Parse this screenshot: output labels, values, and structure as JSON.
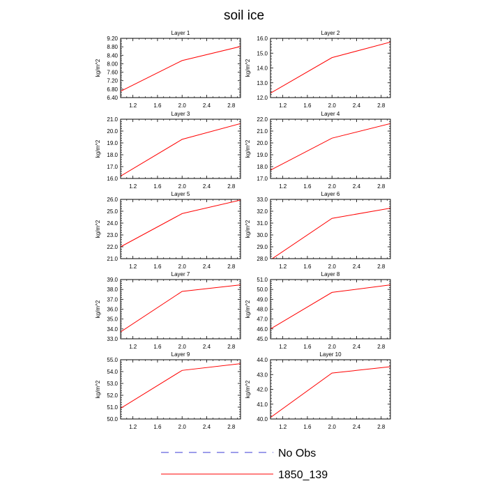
{
  "figure_title": "soil ice",
  "legend": [
    {
      "label": "No Obs",
      "color": "#3b3bd6",
      "style": "dashed"
    },
    {
      "label": "1850_139",
      "color": "#ff0000",
      "style": "solid"
    }
  ],
  "chart_data": [
    {
      "type": "line",
      "title": "Layer 1",
      "ylabel": "kg/m^2",
      "xlim": [
        1.0,
        2.95
      ],
      "ylim": [
        6.4,
        9.2
      ],
      "xticks": [
        "1.2",
        "1.6",
        "2.0",
        "2.4",
        "2.8"
      ],
      "yticks": [
        "6.40",
        "6.80",
        "7.20",
        "7.60",
        "8.00",
        "8.40",
        "8.80",
        "9.20"
      ],
      "series": [
        {
          "name": "1850_139",
          "x": [
            1,
            2,
            3
          ],
          "y": [
            6.7,
            8.15,
            8.85
          ]
        }
      ]
    },
    {
      "type": "line",
      "title": "Layer 2",
      "ylabel": "kg/m^2",
      "xlim": [
        1.0,
        2.95
      ],
      "ylim": [
        12.0,
        16.0
      ],
      "xticks": [
        "1.2",
        "1.6",
        "2.0",
        "2.4",
        "2.8"
      ],
      "yticks": [
        "12.0",
        "13.0",
        "14.0",
        "15.0",
        "16.0"
      ],
      "series": [
        {
          "name": "1850_139",
          "x": [
            1,
            2,
            3
          ],
          "y": [
            12.3,
            14.7,
            15.8
          ]
        }
      ]
    },
    {
      "type": "line",
      "title": "Layer 3",
      "ylabel": "kg/m^2",
      "xlim": [
        1.0,
        2.95
      ],
      "ylim": [
        16.0,
        21.0
      ],
      "xticks": [
        "1.2",
        "1.6",
        "2.0",
        "2.4",
        "2.8"
      ],
      "yticks": [
        "16.0",
        "17.0",
        "18.0",
        "19.0",
        "20.0",
        "21.0"
      ],
      "series": [
        {
          "name": "1850_139",
          "x": [
            1,
            2,
            3
          ],
          "y": [
            16.2,
            19.3,
            20.7
          ]
        }
      ]
    },
    {
      "type": "line",
      "title": "Layer 4",
      "ylabel": "kg/m^2",
      "xlim": [
        1.0,
        2.95
      ],
      "ylim": [
        17.0,
        22.0
      ],
      "xticks": [
        "1.2",
        "1.6",
        "2.0",
        "2.4",
        "2.8"
      ],
      "yticks": [
        "17.0",
        "18.0",
        "19.0",
        "20.0",
        "21.0",
        "22.0"
      ],
      "series": [
        {
          "name": "1850_139",
          "x": [
            1,
            2,
            3
          ],
          "y": [
            17.7,
            20.4,
            21.7
          ]
        }
      ]
    },
    {
      "type": "line",
      "title": "Layer 5",
      "ylabel": "kg/m^2",
      "xlim": [
        1.0,
        2.95
      ],
      "ylim": [
        21.0,
        26.0
      ],
      "xticks": [
        "1.2",
        "1.6",
        "2.0",
        "2.4",
        "2.8"
      ],
      "yticks": [
        "21.0",
        "22.0",
        "23.0",
        "24.0",
        "25.0",
        "26.0"
      ],
      "series": [
        {
          "name": "1850_139",
          "x": [
            1,
            2,
            3
          ],
          "y": [
            22.0,
            24.8,
            26.0
          ]
        }
      ]
    },
    {
      "type": "line",
      "title": "Layer 6",
      "ylabel": "kg/m^2",
      "xlim": [
        1.0,
        2.95
      ],
      "ylim": [
        28.0,
        33.0
      ],
      "xticks": [
        "1.2",
        "1.6",
        "2.0",
        "2.4",
        "2.8"
      ],
      "yticks": [
        "28.0",
        "29.0",
        "30.0",
        "31.0",
        "32.0",
        "33.0"
      ],
      "series": [
        {
          "name": "1850_139",
          "x": [
            1,
            2,
            3
          ],
          "y": [
            27.9,
            31.4,
            32.3
          ]
        }
      ]
    },
    {
      "type": "line",
      "title": "Layer 7",
      "ylabel": "kg/m^2",
      "xlim": [
        1.0,
        2.95
      ],
      "ylim": [
        33.0,
        39.0
      ],
      "xticks": [
        "1.2",
        "1.6",
        "2.0",
        "2.4",
        "2.8"
      ],
      "yticks": [
        "33.0",
        "34.0",
        "35.0",
        "36.0",
        "37.0",
        "38.0",
        "39.0"
      ],
      "series": [
        {
          "name": "1850_139",
          "x": [
            1,
            2,
            3
          ],
          "y": [
            33.7,
            37.8,
            38.5
          ]
        }
      ]
    },
    {
      "type": "line",
      "title": "Layer 8",
      "ylabel": "kg/m^2",
      "xlim": [
        1.0,
        2.95
      ],
      "ylim": [
        45.0,
        51.0
      ],
      "xticks": [
        "1.2",
        "1.6",
        "2.0",
        "2.4",
        "2.8"
      ],
      "yticks": [
        "45.0",
        "46.0",
        "47.0",
        "48.0",
        "49.0",
        "50.0",
        "51.0"
      ],
      "series": [
        {
          "name": "1850_139",
          "x": [
            1,
            2,
            3
          ],
          "y": [
            46.0,
            49.7,
            50.5
          ]
        }
      ]
    },
    {
      "type": "line",
      "title": "Layer 9",
      "ylabel": "kg/m^2",
      "xlim": [
        1.0,
        2.95
      ],
      "ylim": [
        50.0,
        55.0
      ],
      "xticks": [
        "1.2",
        "1.6",
        "2.0",
        "2.4",
        "2.8"
      ],
      "yticks": [
        "50.0",
        "51.0",
        "52.0",
        "53.0",
        "54.0",
        "55.0"
      ],
      "series": [
        {
          "name": "1850_139",
          "x": [
            1,
            2,
            3
          ],
          "y": [
            50.9,
            54.1,
            54.7
          ]
        }
      ]
    },
    {
      "type": "line",
      "title": "Layer 10",
      "ylabel": "kg/m^2",
      "xlim": [
        1.0,
        2.95
      ],
      "ylim": [
        40.0,
        44.0
      ],
      "xticks": [
        "1.2",
        "1.6",
        "2.0",
        "2.4",
        "2.8"
      ],
      "yticks": [
        "40.0",
        "41.0",
        "42.0",
        "43.0",
        "44.0"
      ],
      "series": [
        {
          "name": "1850_139",
          "x": [
            1,
            2,
            3
          ],
          "y": [
            40.1,
            43.1,
            43.55
          ]
        }
      ]
    }
  ]
}
